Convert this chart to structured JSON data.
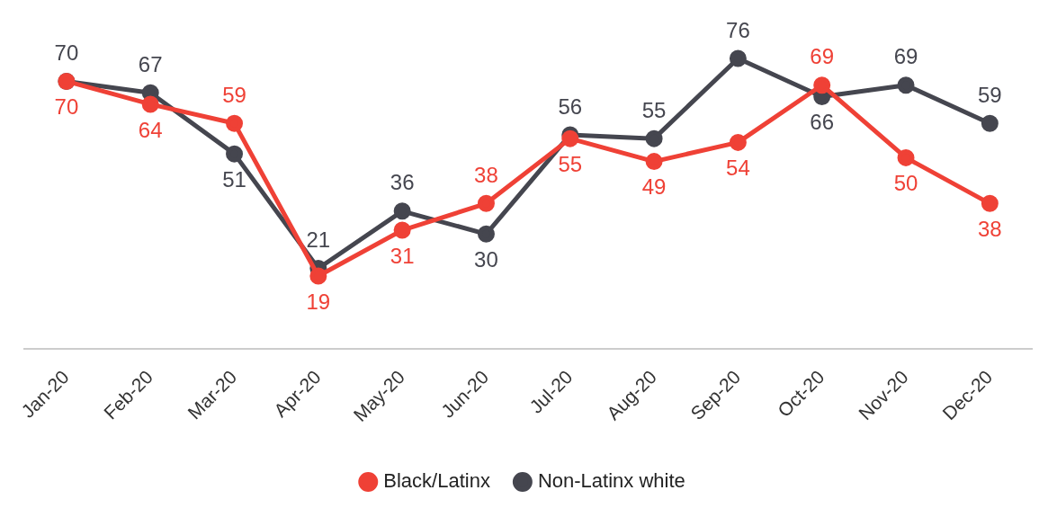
{
  "chart_data": {
    "type": "line",
    "categories": [
      "Jan-20",
      "Feb-20",
      "Mar-20",
      "Apr-20",
      "May-20",
      "Jun-20",
      "Jul-20",
      "Aug-20",
      "Sep-20",
      "Oct-20",
      "Nov-20",
      "Dec-20"
    ],
    "series": [
      {
        "name": "Black/Latinx",
        "color": "#ef4136",
        "values": [
          70,
          64,
          59,
          19,
          31,
          38,
          55,
          49,
          54,
          69,
          50,
          38
        ]
      },
      {
        "name": "Non-Latinx white",
        "color": "#45464f",
        "values": [
          70,
          67,
          51,
          21,
          36,
          30,
          56,
          55,
          76,
          66,
          69,
          59
        ]
      }
    ],
    "tick_labels": "x",
    "grid": false,
    "legend": "bottom",
    "marker": "circle",
    "line_style": "solid",
    "data_labels": true
  }
}
